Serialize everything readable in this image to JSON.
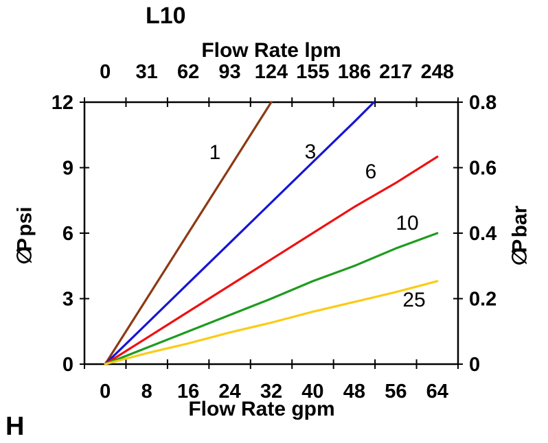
{
  "figure": {
    "corner_label": "H"
  },
  "chart_data": {
    "type": "line",
    "title": "L10",
    "grid": false,
    "legend": "inline-series-labels",
    "background_color": "#ffffff",
    "axis_color": "#000000",
    "x_axis_bottom": {
      "label": "Flow Rate gpm",
      "ticks": [
        "0",
        "8",
        "16",
        "24",
        "32",
        "40",
        "48",
        "56",
        "64"
      ],
      "tick_style": "between-categories"
    },
    "x_axis_top": {
      "label": "Flow Rate lpm",
      "ticks": [
        "0",
        "31",
        "62",
        "93",
        "124",
        "155",
        "186",
        "217",
        "248"
      ],
      "note": "aligned with bottom gpm categories"
    },
    "y_axis_left": {
      "symbol": "∅P",
      "unit": "psi",
      "label": "∅P psi",
      "ticks": [
        "0",
        "3",
        "6",
        "9",
        "12"
      ],
      "range": [
        0,
        12
      ]
    },
    "y_axis_right": {
      "symbol": "∅P",
      "unit": "bar",
      "label": "∅P bar",
      "ticks": [
        "0",
        "0.2",
        "0.4",
        "0.6",
        "0.8"
      ],
      "range": [
        0,
        0.8
      ]
    },
    "series": [
      {
        "name": "1",
        "color": "#8C3A12",
        "x_gpm": [
          0,
          8,
          16,
          24,
          32
        ],
        "y_psi": [
          0,
          3,
          6,
          9,
          12
        ],
        "clipped_at_top": true
      },
      {
        "name": "3",
        "color": "#1515D3",
        "x_gpm": [
          0,
          8,
          16,
          24,
          32,
          40,
          48,
          51.8
        ],
        "y_psi": [
          0,
          1.85,
          3.7,
          5.55,
          7.4,
          9.25,
          11.1,
          12
        ],
        "clipped_at_top": true
      },
      {
        "name": "6",
        "color": "#EE1111",
        "x_gpm": [
          0,
          8,
          16,
          24,
          32,
          40,
          48,
          56,
          64
        ],
        "y_psi": [
          0,
          1.2,
          2.4,
          3.6,
          4.8,
          6.0,
          7.2,
          8.3,
          9.5
        ],
        "clipped_at_top": false
      },
      {
        "name": "10",
        "color": "#1E9B1E",
        "x_gpm": [
          0,
          8,
          16,
          24,
          32,
          40,
          48,
          56,
          64
        ],
        "y_psi": [
          0,
          0.75,
          1.5,
          2.25,
          3.0,
          3.8,
          4.5,
          5.3,
          6.0
        ],
        "clipped_at_top": false
      },
      {
        "name": "25",
        "color": "#FACC15",
        "x_gpm": [
          0,
          8,
          16,
          24,
          32,
          40,
          48,
          56,
          64
        ],
        "y_psi": [
          0,
          0.5,
          0.95,
          1.45,
          1.9,
          2.4,
          2.85,
          3.3,
          3.8
        ],
        "clipped_at_top": false
      }
    ]
  }
}
